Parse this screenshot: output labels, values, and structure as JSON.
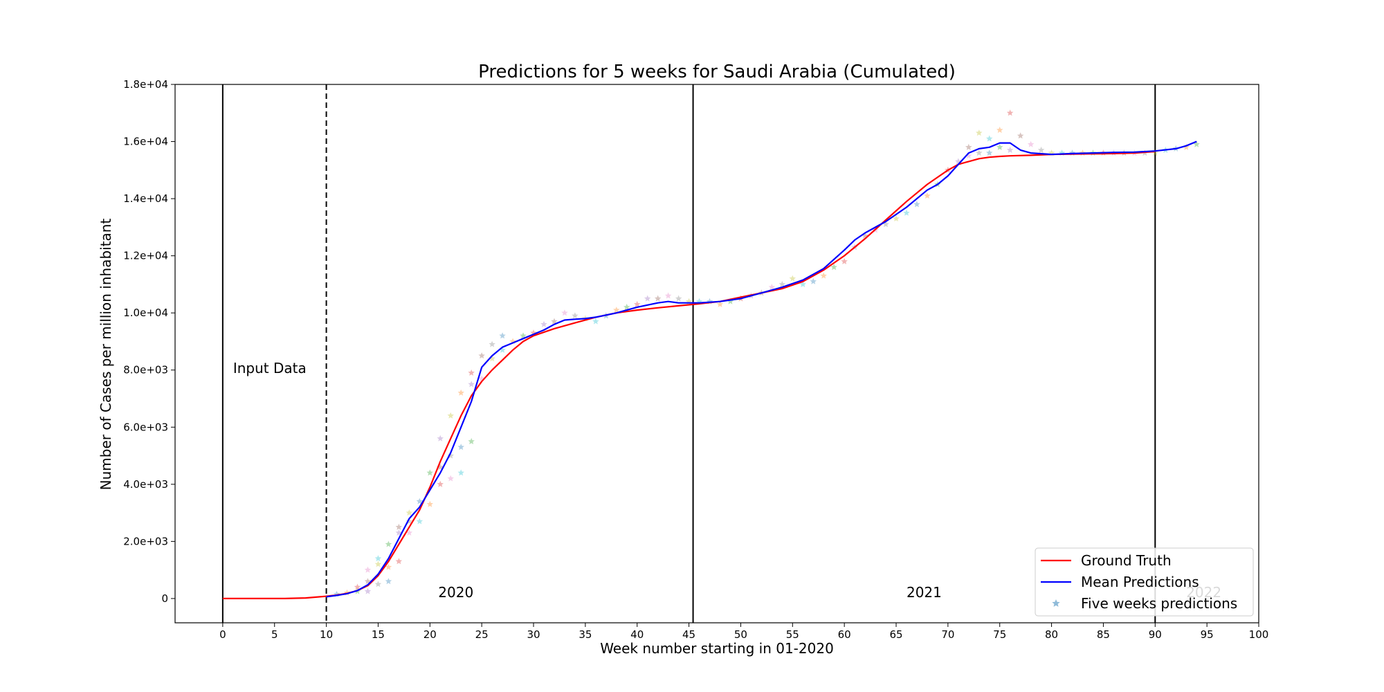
{
  "chart_data": {
    "type": "line",
    "title": "Predictions for 5 weeks for Saudi Arabia (Cumulated)",
    "xlabel": "Week number starting in 01-2020",
    "ylabel": "Number of Cases per million inhabitant",
    "xlim": [
      -4.6,
      100
    ],
    "ylim": [
      -850,
      18000
    ],
    "x_ticks": [
      0,
      5,
      10,
      15,
      20,
      25,
      30,
      35,
      40,
      45,
      50,
      55,
      60,
      65,
      70,
      75,
      80,
      85,
      90,
      95,
      100
    ],
    "y_ticks": [
      0,
      2000,
      4000,
      6000,
      8000,
      10000,
      12000,
      14000,
      16000,
      18000
    ],
    "y_tick_labels": [
      "0",
      "2.0e+03",
      "4.0e+03",
      "6.0e+03",
      "8.0e+03",
      "1.0e+04",
      "1.2e+04",
      "1.4e+04",
      "1.6e+04",
      "1.8e+04"
    ],
    "grid": false,
    "legend_position": "lower-right",
    "vertical_lines": [
      {
        "x": 0,
        "style": "solid"
      },
      {
        "x": 10,
        "style": "dashed"
      },
      {
        "x": 45.4,
        "style": "solid"
      },
      {
        "x": 90,
        "style": "solid"
      }
    ],
    "annotations": [
      {
        "text": "Input Data",
        "x": 1,
        "y": 7900
      },
      {
        "text": "2020",
        "x": 20.8,
        "y": 50
      },
      {
        "text": "2021",
        "x": 66,
        "y": 50
      },
      {
        "text": "2022",
        "x": 93,
        "y": 50
      }
    ],
    "series": [
      {
        "name": "Ground Truth",
        "color": "#ff0000",
        "x": [
          0,
          2,
          4,
          6,
          8,
          10,
          11,
          12,
          13,
          14,
          15,
          16,
          17,
          18,
          19,
          20,
          21,
          22,
          23,
          24,
          25,
          26,
          27,
          28,
          29,
          30,
          32,
          34,
          36,
          38,
          40,
          42,
          44,
          46,
          48,
          50,
          52,
          54,
          56,
          58,
          60,
          62,
          64,
          66,
          68,
          70,
          71,
          72,
          73,
          74,
          75,
          76,
          78,
          80,
          82,
          84,
          86,
          88,
          90
        ],
        "y": [
          0,
          0,
          0,
          0,
          20,
          80,
          120,
          180,
          280,
          450,
          800,
          1300,
          1900,
          2500,
          3100,
          3900,
          4800,
          5600,
          6400,
          7100,
          7600,
          8000,
          8350,
          8700,
          9000,
          9200,
          9450,
          9650,
          9850,
          10000,
          10100,
          10180,
          10250,
          10320,
          10400,
          10550,
          10700,
          10850,
          11100,
          11500,
          12000,
          12600,
          13250,
          13900,
          14500,
          15000,
          15200,
          15300,
          15400,
          15450,
          15480,
          15500,
          15520,
          15550,
          15560,
          15570,
          15580,
          15600,
          15650
        ]
      },
      {
        "name": "Mean Predictions",
        "color": "#0000ff",
        "x": [
          10,
          11,
          12,
          13,
          14,
          15,
          16,
          17,
          18,
          19,
          20,
          21,
          22,
          23,
          24,
          25,
          26,
          27,
          28,
          29,
          30,
          31,
          32,
          33,
          34,
          35,
          36,
          38,
          40,
          42,
          43,
          44,
          46,
          48,
          50,
          52,
          54,
          56,
          58,
          60,
          61,
          62,
          64,
          66,
          68,
          69,
          70,
          71,
          72,
          73,
          74,
          75,
          76,
          77,
          78,
          80,
          82,
          84,
          86,
          88,
          90,
          92,
          93,
          94
        ],
        "y": [
          60,
          110,
          170,
          280,
          480,
          850,
          1400,
          2100,
          2800,
          3200,
          3800,
          4400,
          5100,
          6000,
          6900,
          8100,
          8500,
          8800,
          8950,
          9100,
          9250,
          9400,
          9600,
          9750,
          9780,
          9800,
          9850,
          10000,
          10200,
          10350,
          10400,
          10350,
          10350,
          10400,
          10500,
          10700,
          10900,
          11150,
          11550,
          12200,
          12550,
          12800,
          13200,
          13700,
          14300,
          14500,
          14800,
          15200,
          15600,
          15750,
          15800,
          15950,
          15950,
          15700,
          15600,
          15550,
          15580,
          15600,
          15620,
          15630,
          15670,
          15750,
          15850,
          16000
        ]
      },
      {
        "name": "Five weeks predictions",
        "marker": "star",
        "opacity": 0.35,
        "colors": [
          "#1f77b4",
          "#ff7f0e",
          "#2ca02c",
          "#d62728",
          "#9467bd",
          "#8c564b",
          "#e377c2",
          "#7f7f7f",
          "#bcbd22",
          "#17becf"
        ],
        "x": [
          11,
          12,
          13,
          13,
          14,
          14,
          14,
          15,
          15,
          15,
          16,
          16,
          16,
          17,
          17,
          17,
          18,
          18,
          18,
          19,
          19,
          20,
          20,
          21,
          21,
          21,
          22,
          22,
          22,
          23,
          23,
          23,
          24,
          24,
          24,
          25,
          25,
          26,
          26,
          27,
          27,
          28,
          29,
          30,
          31,
          32,
          33,
          34,
          35,
          36,
          37,
          38,
          39,
          40,
          41,
          42,
          43,
          44,
          45,
          46,
          47,
          48,
          49,
          50,
          51,
          52,
          53,
          54,
          55,
          56,
          57,
          58,
          59,
          60,
          61,
          62,
          63,
          64,
          65,
          66,
          67,
          68,
          69,
          70,
          71,
          72,
          72,
          73,
          73,
          74,
          74,
          75,
          75,
          76,
          76,
          77,
          78,
          79,
          80,
          81,
          82,
          83,
          84,
          85,
          86,
          87,
          88,
          89,
          90,
          91,
          92,
          93,
          94
        ],
        "y": [
          150,
          200,
          250,
          400,
          250,
          600,
          1000,
          500,
          1200,
          1400,
          600,
          1100,
          1900,
          1300,
          2300,
          2500,
          2300,
          2700,
          3000,
          2700,
          3400,
          3300,
          4400,
          4000,
          5600,
          4600,
          4200,
          5000,
          6400,
          4400,
          5300,
          7200,
          5500,
          7900,
          7500,
          8500,
          7700,
          8900,
          8400,
          8700,
          9200,
          9000,
          9200,
          9300,
          9600,
          9700,
          10000,
          9900,
          9800,
          9700,
          9900,
          10100,
          10200,
          10300,
          10500,
          10500,
          10600,
          10500,
          10400,
          10400,
          10400,
          10300,
          10400,
          10500,
          10600,
          10700,
          10900,
          11000,
          11200,
          11000,
          11100,
          11300,
          11600,
          11800,
          12300,
          12700,
          12900,
          13100,
          13300,
          13500,
          13800,
          14100,
          14500,
          15000,
          15300,
          15800,
          15500,
          15600,
          16300,
          16100,
          15600,
          16400,
          15800,
          17000,
          15700,
          16200,
          15900,
          15700,
          15600,
          15600,
          15600,
          15600,
          15600,
          15600,
          15600,
          15600,
          15600,
          15600,
          15600,
          15700,
          15750,
          15800,
          15900
        ]
      }
    ]
  }
}
